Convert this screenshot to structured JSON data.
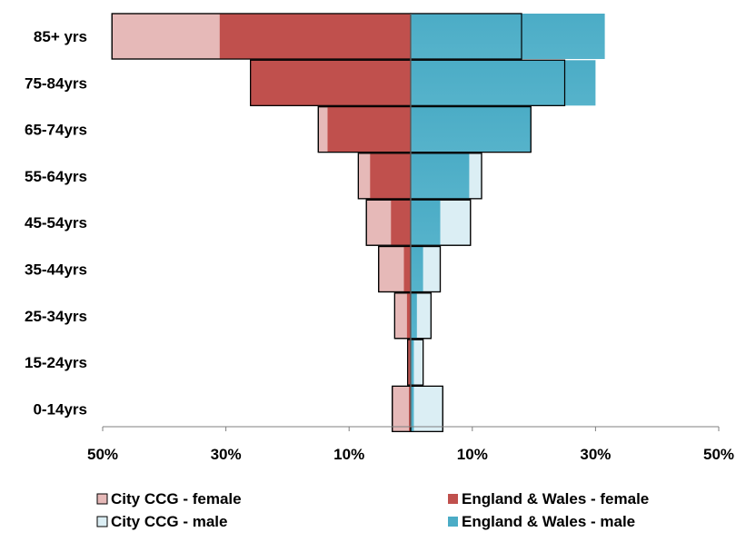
{
  "chart_data": {
    "type": "bar",
    "orientation": "horizontal",
    "layout": "population-pyramid",
    "categories": [
      "85+ yrs",
      "75-84yrs",
      "65-74yrs",
      "55-64yrs",
      "45-54yrs",
      "35-44yrs",
      "25-34yrs",
      "15-24yrs",
      "0-14yrs"
    ],
    "series": [
      {
        "name": "City CCG - female",
        "side": "left",
        "color": "#e6b9b8",
        "values": [
          48.5,
          26.0,
          15.0,
          8.5,
          7.2,
          5.2,
          2.6,
          0.5,
          3.0
        ]
      },
      {
        "name": "England & Wales - female",
        "side": "left",
        "color": "#c0504d",
        "values": [
          31.0,
          26.0,
          13.5,
          6.6,
          3.2,
          1.1,
          0.6,
          0.4,
          0.3
        ]
      },
      {
        "name": "City CCG - male",
        "side": "right",
        "color": "#dbeef4",
        "values": [
          18.0,
          25.0,
          19.5,
          11.5,
          9.7,
          4.8,
          3.3,
          2.0,
          5.2
        ]
      },
      {
        "name": "England & Wales - male",
        "side": "right",
        "color": "#4bacc6",
        "values": [
          31.5,
          30.0,
          19.5,
          9.5,
          4.8,
          2.0,
          1.0,
          0.5,
          0.5
        ]
      }
    ],
    "xlim": [
      -50,
      50
    ],
    "x_ticks": [
      "50%",
      "30%",
      "10%",
      "10%",
      "30%",
      "50%"
    ],
    "title": "",
    "xlabel": "",
    "ylabel": "",
    "grid": false,
    "legend_position": "bottom"
  }
}
